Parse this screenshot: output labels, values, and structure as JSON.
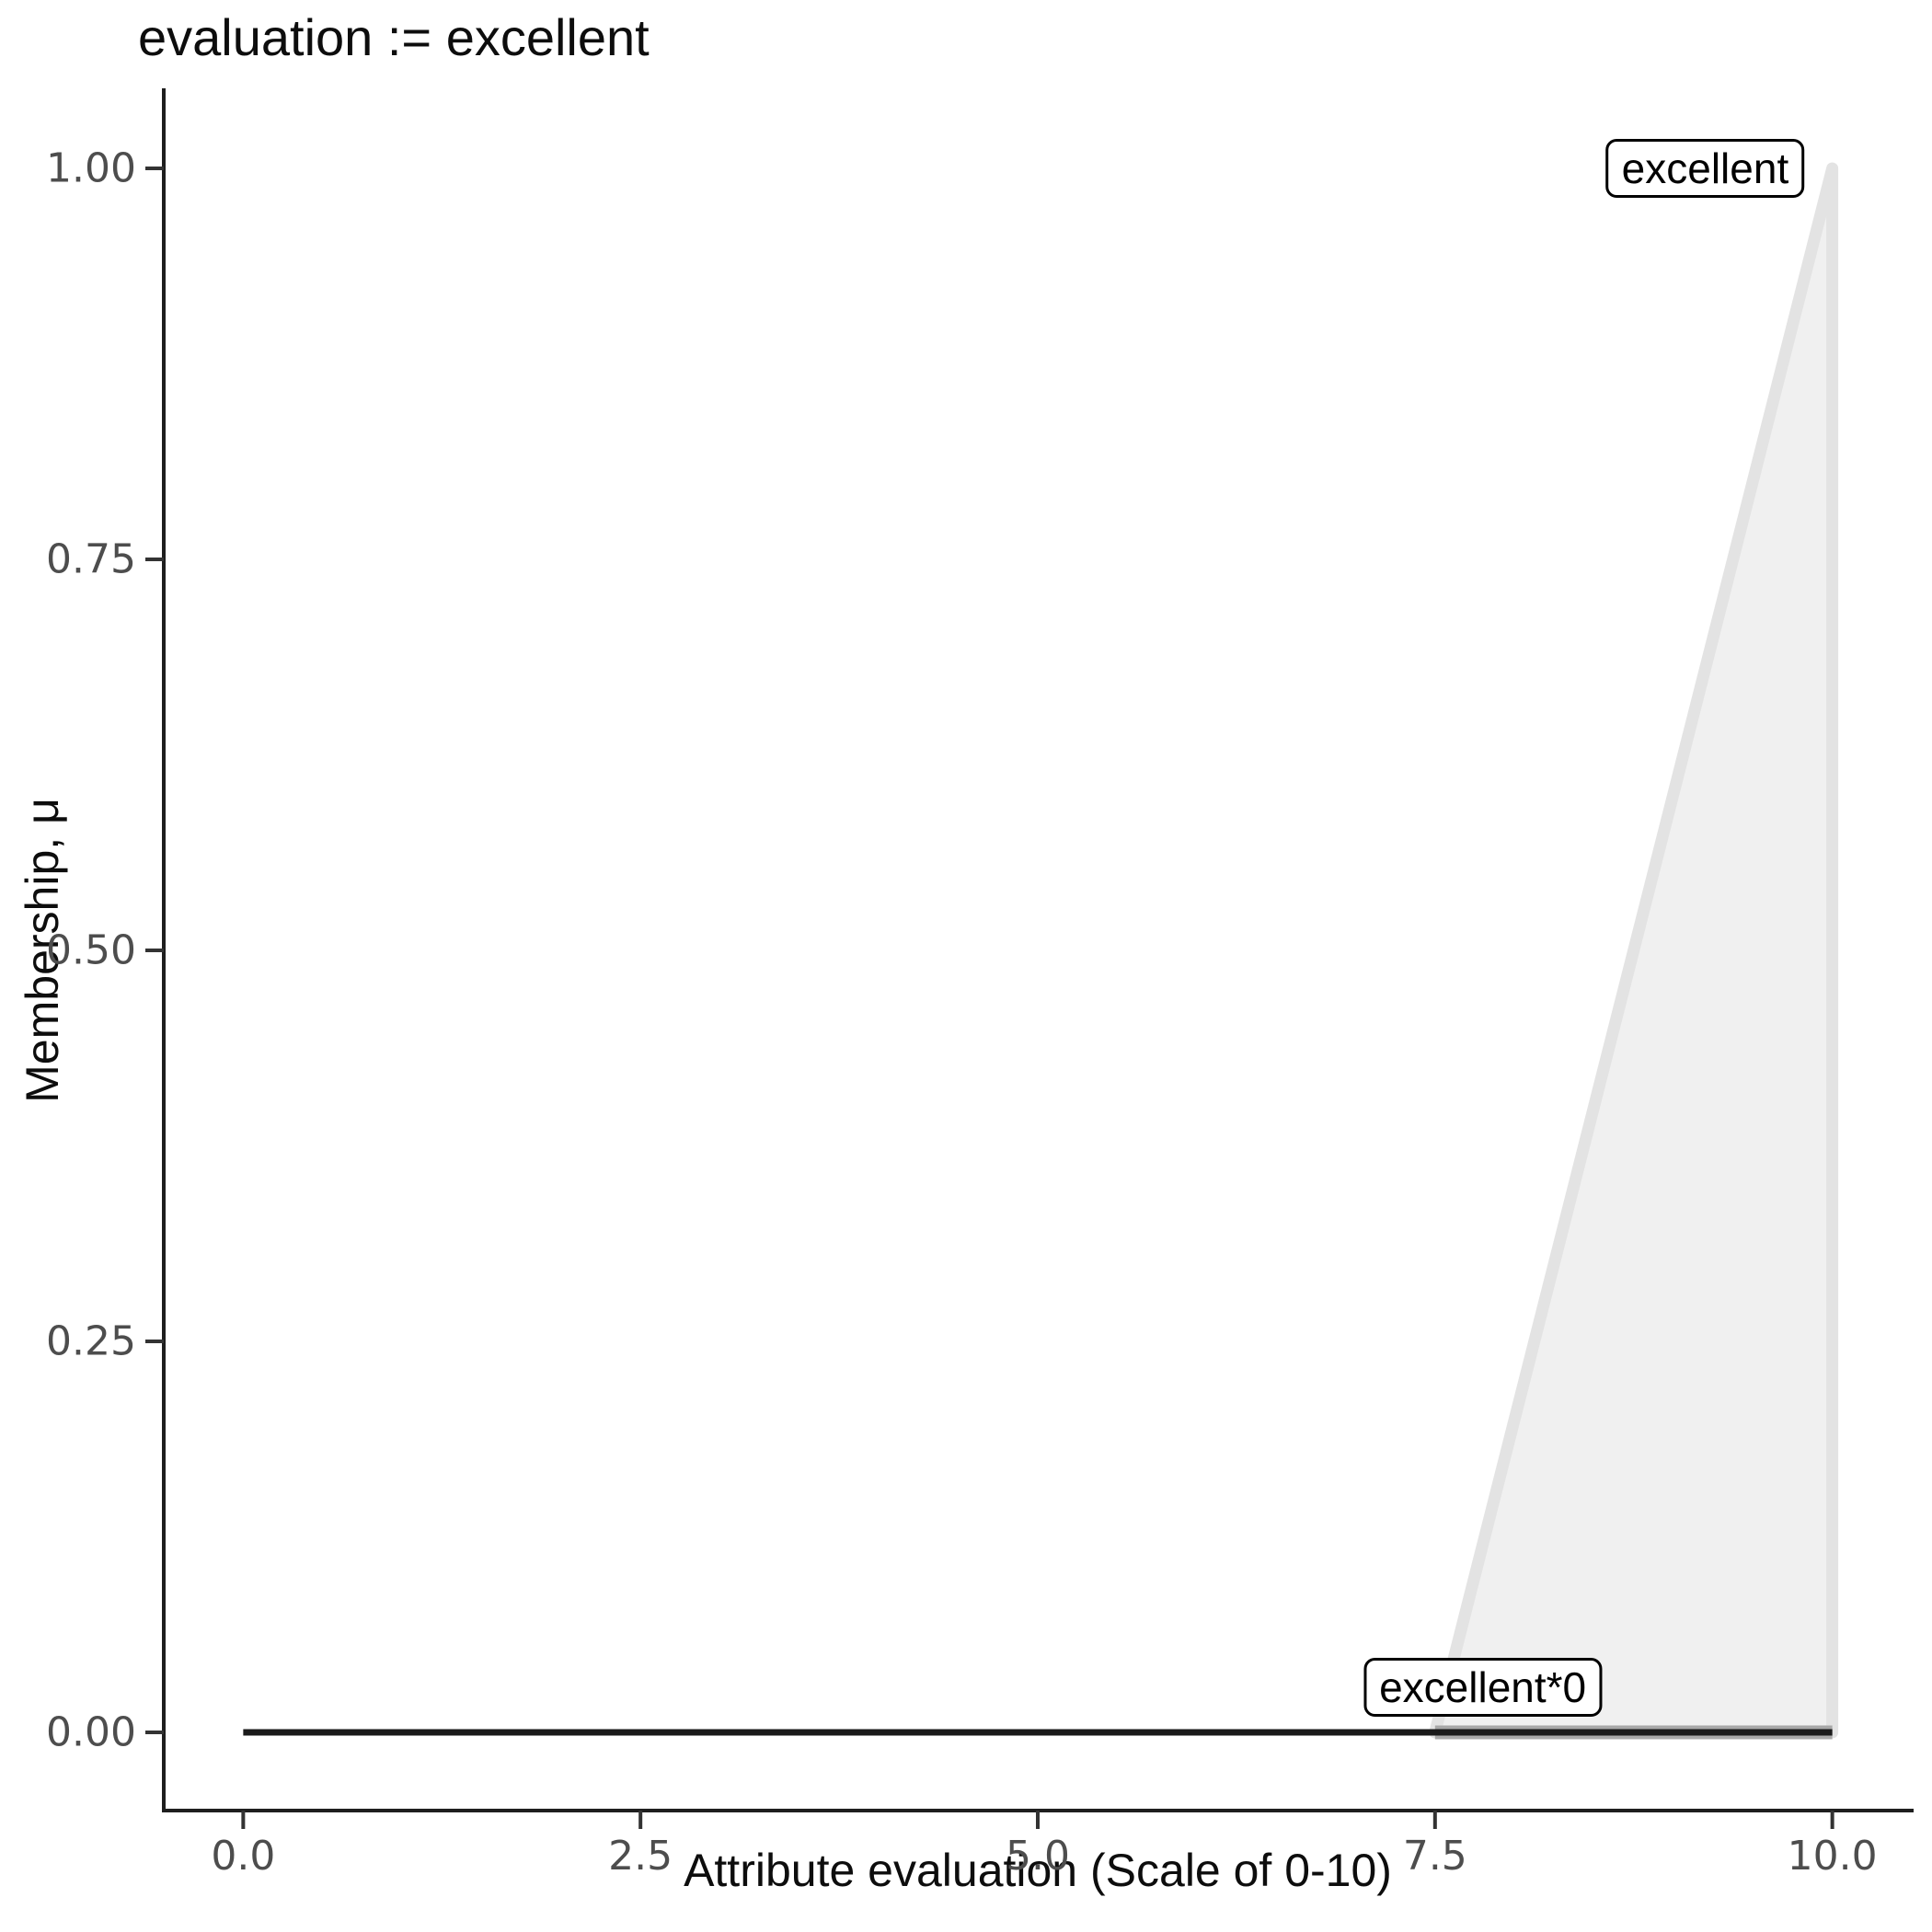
{
  "chart_data": {
    "type": "area",
    "title": "evaluation := excellent",
    "xlabel": "Attribute evaluation (Scale of 0-10)",
    "ylabel": "Membership, μ",
    "xlim": [
      -0.5,
      10.5
    ],
    "ylim": [
      -0.05,
      1.05
    ],
    "grid": false,
    "background": "#FFFFFF",
    "legend_position": "none",
    "x_ticks": {
      "values": [
        0,
        2.5,
        5,
        7.5,
        10
      ],
      "labels": [
        "0.0",
        "2.5",
        "5.0",
        "7.5",
        "10.0"
      ]
    },
    "y_ticks": {
      "values": [
        0,
        0.25,
        0.5,
        0.75,
        1
      ],
      "labels": [
        "0.00",
        "0.25",
        "0.50",
        "0.75",
        "1.00"
      ]
    },
    "series": [
      {
        "name": "excellent",
        "kind": "filled-polygon",
        "points": [
          [
            7.5,
            0
          ],
          [
            10,
            1
          ],
          [
            10,
            0
          ]
        ],
        "fill": "#F0F0F0",
        "stroke": "#E3E3E3",
        "stroke_width": 13,
        "description": "fuzzy set 'excellent': membership 0 up to x=7.5, rising linearly to 1 at x=10"
      },
      {
        "name": "excellent-support-band",
        "kind": "line",
        "points": [
          [
            7.5,
            0
          ],
          [
            10,
            0
          ]
        ],
        "stroke": "#A8A8A8",
        "stroke_width": 15,
        "description": "gray band along y=0 over the support [7.5,10]"
      },
      {
        "name": "excellent*0",
        "kind": "line",
        "points": [
          [
            0,
            0
          ],
          [
            10,
            0
          ]
        ],
        "stroke": "#1A1A1A",
        "stroke_width": 7,
        "description": "fuzzy set 'excellent' scaled by 0: membership 0 everywhere on [0,10]"
      }
    ],
    "annotations": [
      {
        "label": "excellent",
        "x": 9.2,
        "y": 1.0
      },
      {
        "label": "excellent*0",
        "x": 7.8,
        "y": 0.029
      }
    ],
    "colors": {
      "axis": "#1E1E1E",
      "tick_mark": "#333333",
      "tick_label": "#4D4D4D",
      "text": "#0D0D0D",
      "label_box_border": "#000000",
      "label_box_fill": "#FFFFFF"
    }
  }
}
